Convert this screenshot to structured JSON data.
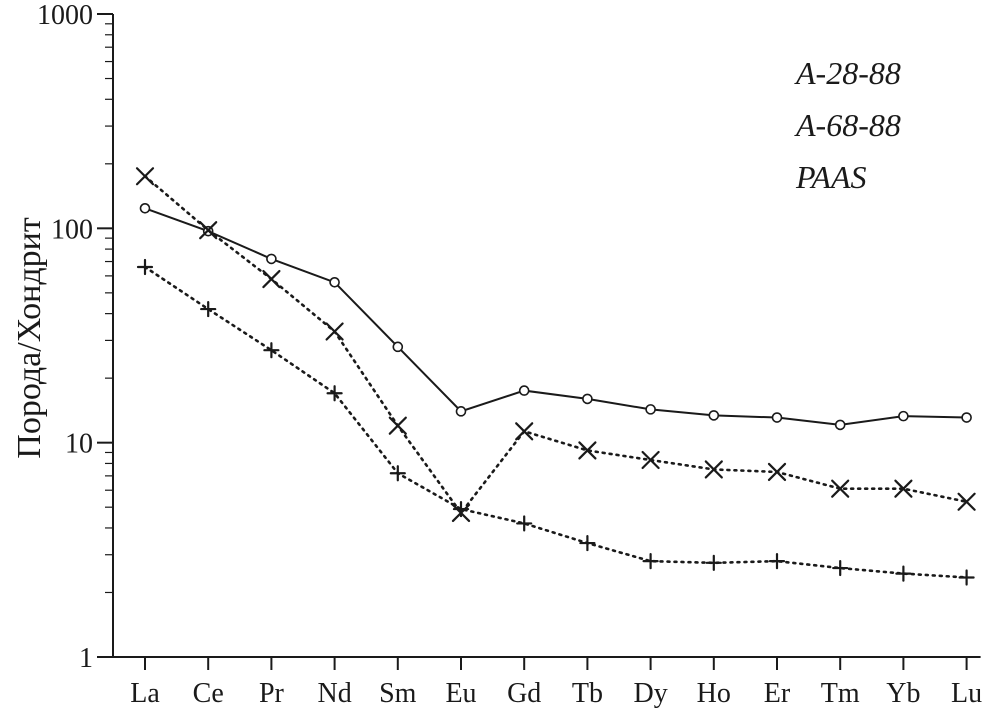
{
  "chart_data": {
    "type": "line",
    "title": "",
    "xlabel": "",
    "ylabel": "Порода/Хондрит",
    "yscale": "log",
    "ylim": [
      1,
      1000
    ],
    "y_ticks": [
      "1",
      "10",
      "100",
      "1000"
    ],
    "grid": false,
    "legend_position": "top-right",
    "categories": [
      "La",
      "Ce",
      "Pr",
      "Nd",
      "Sm",
      "Eu",
      "Gd",
      "Tb",
      "Dy",
      "Ho",
      "Er",
      "Tm",
      "Yb",
      "Lu"
    ],
    "series": [
      {
        "name": "A-28-88",
        "marker": "circle",
        "line": "solid",
        "values": [
          124,
          97,
          72,
          56,
          28,
          14,
          17.5,
          16,
          14.3,
          13.4,
          13.1,
          12.1,
          13.3,
          13.1
        ]
      },
      {
        "name": "A-68-88",
        "marker": "x",
        "line": "dotted",
        "values": [
          175,
          98,
          58,
          33,
          12,
          4.7,
          11.3,
          9.2,
          8.3,
          7.5,
          7.3,
          6.1,
          6.1,
          5.3
        ]
      },
      {
        "name": "PAAS",
        "marker": "plus",
        "line": "dotted",
        "values": [
          66,
          42,
          27,
          17,
          7.2,
          4.9,
          4.2,
          3.4,
          2.8,
          2.75,
          2.8,
          2.6,
          2.45,
          2.35
        ]
      }
    ]
  }
}
